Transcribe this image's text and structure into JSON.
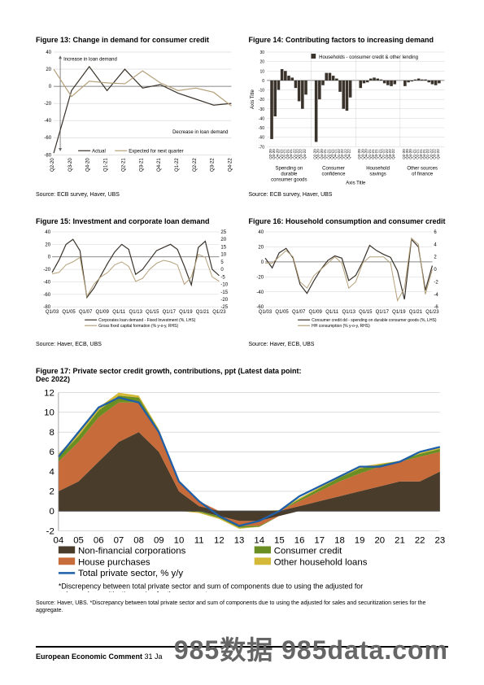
{
  "fig13": {
    "title": "Figure 13: Change in demand for consumer credit",
    "source": "Source: ECB survey, Haver, UBS",
    "type": "line",
    "ylim": [
      -80,
      40
    ],
    "ytick_step": 20,
    "x_labels": [
      "Q2-20",
      "Q3-20",
      "Q4-20",
      "Q1-21",
      "Q2-21",
      "Q3-21",
      "Q4-21",
      "Q1-22",
      "Q2-22",
      "Q3-22",
      "Q4-22"
    ],
    "series": {
      "actual": {
        "label": "Actual",
        "color": "#3a332b",
        "width": 1.2,
        "values": [
          -78,
          -5,
          23,
          -5,
          20,
          -2,
          2,
          -8,
          -15,
          -22,
          -20
        ]
      },
      "expected": {
        "label": "Expected for next quarter",
        "color": "#b4a07a",
        "width": 1.2,
        "values": [
          20,
          -12,
          6,
          4,
          3,
          18,
          4,
          -5,
          -2,
          -7,
          -23
        ]
      }
    },
    "annotations": {
      "top": "Increase in loan demand",
      "bottom": "Decrease in loan demand"
    },
    "arrow_color": "#666",
    "background_color": "#ffffff",
    "grid_color": "#c8c8c8",
    "axis_color": "#888",
    "tick_fontsize": 6,
    "legend_fontsize": 6,
    "annotation_fontsize": 6
  },
  "fig14": {
    "title": "Figure 14: Contributing factors to increasing demand",
    "source": "Source: ECB survey, Haver, UBS",
    "type": "bar",
    "ylim": [
      -70,
      30
    ],
    "ytick_step": 10,
    "ylabel": "Axis Title",
    "xlabel": "Axis Title",
    "legend": "Households - consumer credit & other lending",
    "groups": [
      "Spending on durable consumer goods",
      "Consumer confidence",
      "Household savings",
      "Other sources of finance"
    ],
    "quarters": [
      "Q2-20",
      "Q3-20",
      "Q4-20",
      "Q1-21",
      "Q2-21",
      "Q3-21",
      "Q4-21",
      "Q1-22",
      "Q2-22",
      "Q3-22",
      "Q4-22"
    ],
    "values": [
      [
        -62,
        -38,
        -10,
        12,
        10,
        5,
        3,
        -8,
        -22,
        -30,
        -15
      ],
      [
        -65,
        -20,
        -5,
        8,
        8,
        5,
        2,
        -12,
        -30,
        -32,
        -18
      ],
      [
        -8,
        -3,
        -2,
        2,
        3,
        2,
        1,
        -3,
        -5,
        -6,
        -4
      ],
      [
        -6,
        -2,
        -1,
        1,
        2,
        1,
        1,
        -2,
        -4,
        -5,
        -3
      ]
    ],
    "bar_color": "#3a332b",
    "background_color": "#ffffff",
    "grid_color": "#c8c8c8",
    "tick_fontsize": 5,
    "group_fontsize": 6,
    "legend_fontsize": 6
  },
  "fig15": {
    "title": "Figure 15: Investment and corporate loan demand",
    "source": "Source: Haver, ECB, UBS",
    "type": "line-dual-axis",
    "x_labels": [
      "Q1/03",
      "Q1/05",
      "Q1/07",
      "Q1/09",
      "Q1/11",
      "Q1/13",
      "Q1/15",
      "Q1/17",
      "Q1/19",
      "Q1/21",
      "Q1/23"
    ],
    "left_ylim": [
      -80,
      40
    ],
    "left_tick_step": 20,
    "right_ylim": [
      -25,
      25
    ],
    "right_tick_step": 5,
    "series": {
      "loan_demand": {
        "label": "Corporates loan demand - Fixed Investment (%, LHS)",
        "color": "#3a332b",
        "width": 1.2,
        "values": [
          -25,
          -5,
          20,
          28,
          10,
          -65,
          -50,
          -30,
          -10,
          8,
          20,
          12,
          -28,
          -20,
          -5,
          10,
          15,
          20,
          12,
          -15,
          -45,
          15,
          25,
          -20,
          -30
        ]
      },
      "gfcf": {
        "label": "Gross fixed capital formation (% y-o-y, RHS)",
        "color": "#b4a07a",
        "width": 1.0,
        "values": [
          -3,
          -2,
          3,
          5,
          8,
          -18,
          -10,
          -5,
          -2,
          3,
          5,
          2,
          -8,
          -6,
          0,
          4,
          6,
          5,
          3,
          -10,
          -5,
          10,
          8,
          -5,
          -8
        ]
      }
    },
    "background_color": "#ffffff",
    "grid_color": "#c8c8c8",
    "tick_fontsize": 6,
    "legend_fontsize": 5
  },
  "fig16": {
    "title": "Figure 16: Household consumption and consumer credit",
    "source": "Source: Haver, ECB, UBS",
    "type": "line-dual-axis",
    "x_labels": [
      "Q1/03",
      "Q1/05",
      "Q1/07",
      "Q1/09",
      "Q1/11",
      "Q1/13",
      "Q1/15",
      "Q1/17",
      "Q1/19",
      "Q1/21",
      "Q1/23"
    ],
    "left_ylim": [
      -60,
      40
    ],
    "left_tick_step": 20,
    "right_ylim": [
      -6,
      6
    ],
    "right_tick_step": 2,
    "series": {
      "credit_dd": {
        "label": "Consumer credit dd - spending on durable consumer goods (%, LHS)",
        "color": "#3a332b",
        "width": 1.2,
        "values": [
          5,
          -8,
          12,
          18,
          5,
          -30,
          -42,
          -25,
          -10,
          2,
          8,
          5,
          -25,
          -18,
          0,
          22,
          15,
          10,
          6,
          -12,
          -50,
          30,
          20,
          -38,
          -5
        ]
      },
      "hh_cons": {
        "label": "HH consumption (% y-o-y, RHS)",
        "color": "#b4a07a",
        "width": 1.0,
        "values": [
          1,
          1,
          2,
          3,
          2,
          -2,
          -3,
          -1,
          0,
          1,
          2,
          1,
          -3,
          -2,
          1,
          2,
          2,
          2,
          1,
          -5,
          -3,
          5,
          4,
          -4,
          0
        ]
      }
    },
    "background_color": "#ffffff",
    "grid_color": "#c8c8c8",
    "tick_fontsize": 6,
    "legend_fontsize": 5
  },
  "fig17": {
    "title": "Figure 17: Private sector credit growth, contributions, ppt (Latest data point: Dec 2022)",
    "source": "Source: Haver, UBS.  *Discrepancy between total private sector and sum of components due to using the adjusted for sales and securitization series for the aggregate.",
    "footnote_in_chart": "*Discrepency between total private sector and sum of components due to using the adjusted for sales and securitization series for the aggregate.",
    "type": "stacked-area-with-line",
    "ylim": [
      -2,
      12
    ],
    "ytick_step": 2,
    "x_labels": [
      "04",
      "05",
      "06",
      "07",
      "08",
      "09",
      "10",
      "11",
      "12",
      "13",
      "14",
      "15",
      "16",
      "17",
      "18",
      "19",
      "20",
      "21",
      "22",
      "23"
    ],
    "areas": {
      "nfc": {
        "label": "Non-financial corporations",
        "color": "#4a3c2a",
        "values": [
          2,
          3,
          5,
          7,
          8,
          6,
          2,
          0.5,
          -0.5,
          -1,
          -1,
          -0.5,
          0.5,
          1,
          1.5,
          2,
          2.5,
          3,
          3,
          4
        ]
      },
      "house": {
        "label": "House purchases",
        "color": "#c76b3a",
        "values": [
          3,
          4,
          4.5,
          4,
          3,
          2,
          1,
          0.5,
          0,
          -0.5,
          -0.5,
          0,
          0.5,
          1,
          1.5,
          1.8,
          2,
          2,
          2.5,
          2
        ]
      },
      "consumer": {
        "label": "Consumer credit",
        "color": "#6b8e23",
        "values": [
          0.5,
          0.6,
          0.7,
          0.7,
          0.5,
          0.2,
          0,
          -0.1,
          -0.2,
          -0.2,
          -0.1,
          0,
          0.2,
          0.3,
          0.4,
          0.5,
          0.2,
          0.1,
          0.3,
          0.3
        ]
      },
      "other": {
        "label": "Other household loans",
        "color": "#d4b838",
        "values": [
          0.3,
          0.3,
          0.3,
          0.3,
          0.2,
          0.1,
          0,
          -0.1,
          -0.1,
          -0.1,
          0,
          0.1,
          0.1,
          0.1,
          0.2,
          0.2,
          0.1,
          0,
          0.1,
          0.1
        ]
      }
    },
    "line": {
      "label": "Total private sector, % y/y",
      "color": "#1e5fa8",
      "width": 1.8,
      "values": [
        5.5,
        8,
        10.5,
        11.5,
        11,
        8,
        3,
        1,
        -0.5,
        -1.5,
        -1,
        0,
        1.5,
        2.5,
        3.5,
        4.5,
        4.5,
        5,
        6,
        6.5
      ]
    },
    "background_color": "#ffffff",
    "grid_color": "#c8c8c8",
    "tick_fontsize": 9,
    "legend_fontsize": 9
  },
  "footer": {
    "title": "European Economic Comment",
    "date": "31 Ja"
  },
  "watermark": {
    "left": "985数据",
    "right": "985data.com"
  }
}
